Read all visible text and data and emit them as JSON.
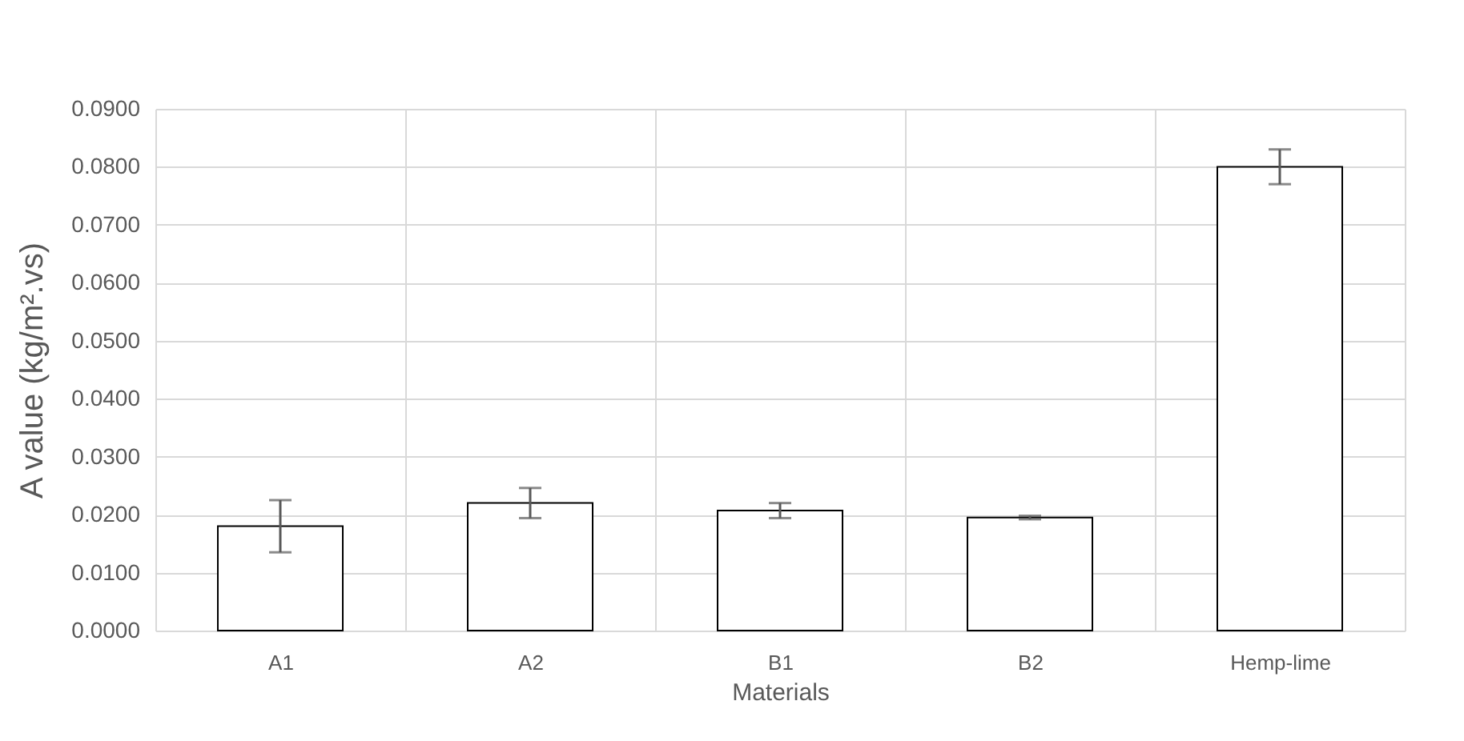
{
  "chart_data": {
    "type": "bar",
    "xlabel": "Materials",
    "ylabel": "A value (kg/m².vs)",
    "categories": [
      "A1",
      "A2",
      "B1",
      "B2",
      "Hemp-lime"
    ],
    "series": [
      {
        "color": "#ffffff",
        "values": [
          0.018,
          0.022,
          0.0207,
          0.0195,
          0.08
        ],
        "errors": [
          0.0045,
          0.0026,
          0.0013,
          0.0003,
          0.003
        ]
      }
    ],
    "ylim": [
      0,
      0.09
    ],
    "yticks": [
      {
        "value": 0,
        "label": "0.0000"
      },
      {
        "value": 0.01,
        "label": "0.0100"
      },
      {
        "value": 0.02,
        "label": "0.0200"
      },
      {
        "value": 0.03,
        "label": "0.0300"
      },
      {
        "value": 0.04,
        "label": "0.0400"
      },
      {
        "value": 0.05,
        "label": "0.0500"
      },
      {
        "value": 0.06,
        "label": "0.0600"
      },
      {
        "value": 0.07,
        "label": "0.0700"
      },
      {
        "value": 0.08,
        "label": "0.0800"
      },
      {
        "value": 0.09,
        "label": "0.0900"
      }
    ],
    "grid": true
  }
}
